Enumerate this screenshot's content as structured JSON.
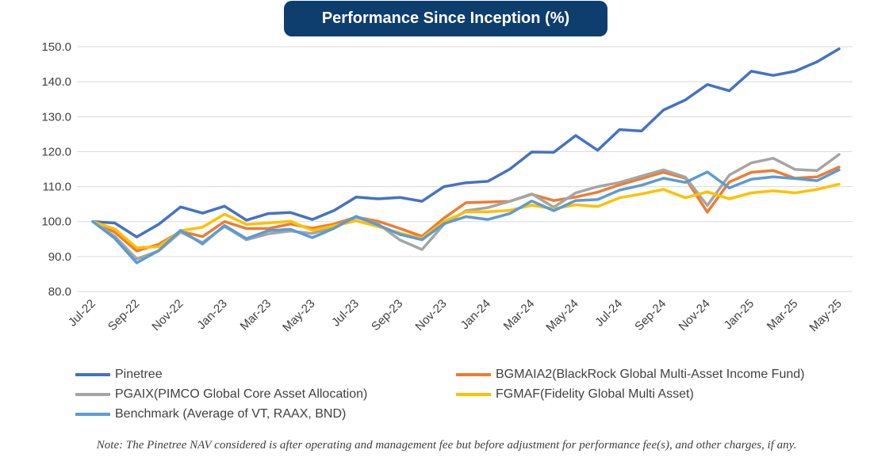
{
  "chart_data": {
    "type": "line",
    "title": "Performance Since Inception (%)",
    "ylim": [
      80,
      150
    ],
    "yticks": [
      "80.0",
      "90.0",
      "100.0",
      "110.0",
      "120.0",
      "130.0",
      "140.0",
      "150.0"
    ],
    "x": [
      "Jul-22",
      "Aug-22",
      "Sep-22",
      "Oct-22",
      "Nov-22",
      "Dec-22",
      "Jan-23",
      "Feb-23",
      "Mar-23",
      "Apr-23",
      "May-23",
      "Jun-23",
      "Jul-23",
      "Aug-23",
      "Sep-23",
      "Oct-23",
      "Nov-23",
      "Dec-23",
      "Jan-24",
      "Feb-24",
      "Mar-24",
      "Apr-24",
      "May-24",
      "Jun-24",
      "Jul-24",
      "Aug-24",
      "Sep-24",
      "Oct-24",
      "Nov-24",
      "Dec-24",
      "Jan-25",
      "Feb-25",
      "Mar-25",
      "Apr-25",
      "May-25"
    ],
    "xtick_labels": [
      "Jul-22",
      "Sep-22",
      "Nov-22",
      "Jan-23",
      "Mar-23",
      "May-23",
      "Jul-23",
      "Sep-23",
      "Nov-23",
      "Jan-24",
      "Mar-24",
      "May-24",
      "Jul-24",
      "Sep-24",
      "Nov-24",
      "Jan-25",
      "Mar-25",
      "May-25"
    ],
    "grid": true,
    "legend_position": "bottom",
    "series": [
      {
        "name": "Pinetree",
        "color": "#4472c4",
        "values": [
          100.0,
          99.6,
          95.6,
          99.2,
          104.2,
          102.4,
          104.4,
          100.4,
          102.3,
          102.6,
          100.6,
          103.2,
          107.0,
          106.5,
          106.9,
          105.8,
          110.0,
          111.1,
          111.5,
          115.0,
          119.9,
          119.8,
          124.6,
          120.4,
          126.3,
          125.9,
          131.9,
          134.8,
          139.2,
          137.4,
          143.0,
          141.8,
          143.0,
          145.7,
          149.4
        ]
      },
      {
        "name": "BGMAIA2(BlackRock Global Multi-Asset Income Fund)",
        "color": "#ed7d31",
        "values": [
          100.0,
          97.0,
          91.6,
          93.5,
          97.2,
          95.7,
          100.0,
          98.0,
          98.0,
          99.3,
          98.1,
          99.3,
          101.3,
          100.1,
          98.0,
          95.8,
          101.0,
          105.4,
          105.6,
          105.8,
          107.8,
          106.0,
          107.0,
          108.4,
          110.5,
          112.3,
          114.1,
          112.4,
          102.7,
          111.3,
          114.1,
          114.6,
          112.4,
          112.8,
          115.6
        ]
      },
      {
        "name": "PGAIX(PIMCO Global Core Asset Allocation)",
        "color": "#a5a5a5",
        "values": [
          100.0,
          95.8,
          89.3,
          91.6,
          97.0,
          94.0,
          98.6,
          94.8,
          96.5,
          97.3,
          96.6,
          98.4,
          101.2,
          99.3,
          94.7,
          92.0,
          99.2,
          103.1,
          104.0,
          105.8,
          107.9,
          104.1,
          108.2,
          110.0,
          111.2,
          113.0,
          114.8,
          112.7,
          104.6,
          113.3,
          116.8,
          118.1,
          114.9,
          114.6,
          119.2
        ]
      },
      {
        "name": "FGMAF(Fidelity Global Multi Asset)",
        "color": "#ffc000",
        "values": [
          100.0,
          97.9,
          92.5,
          92.8,
          97.4,
          98.4,
          102.1,
          99.2,
          99.6,
          100.1,
          97.5,
          98.8,
          100.2,
          98.6,
          96.7,
          95.2,
          100.0,
          102.8,
          102.8,
          103.2,
          104.7,
          103.6,
          104.8,
          104.3,
          106.8,
          107.9,
          109.2,
          106.8,
          108.5,
          106.5,
          108.2,
          108.8,
          108.2,
          109.2,
          110.7
        ]
      },
      {
        "name": "Benchmark (Average of VT, RAAX, BND)",
        "color": "#5b9bd5",
        "values": [
          100.0,
          95.2,
          88.2,
          91.7,
          97.5,
          93.6,
          98.9,
          95.1,
          97.4,
          97.8,
          95.4,
          98.1,
          101.5,
          99.0,
          96.3,
          94.8,
          99.4,
          101.4,
          100.6,
          102.3,
          105.9,
          103.1,
          106.0,
          106.3,
          109.0,
          110.4,
          112.4,
          111.2,
          114.2,
          109.6,
          112.1,
          112.8,
          112.3,
          111.7,
          114.8
        ]
      }
    ]
  },
  "legend": {
    "items": [
      {
        "label": "Pinetree",
        "color": "#4472c4"
      },
      {
        "label": "BGMAIA2(BlackRock Global Multi-Asset Income Fund)",
        "color": "#ed7d31"
      },
      {
        "label": "PGAIX(PIMCO Global Core Asset Allocation)",
        "color": "#a5a5a5"
      },
      {
        "label": "FGMAF(Fidelity Global Multi Asset)",
        "color": "#ffc000"
      },
      {
        "label": "Benchmark (Average of VT, RAAX, BND)",
        "color": "#5b9bd5"
      }
    ]
  },
  "note": "Note: The Pinetree NAV considered is after operating and management fee but before adjustment for performance fee(s), and other charges, if any."
}
